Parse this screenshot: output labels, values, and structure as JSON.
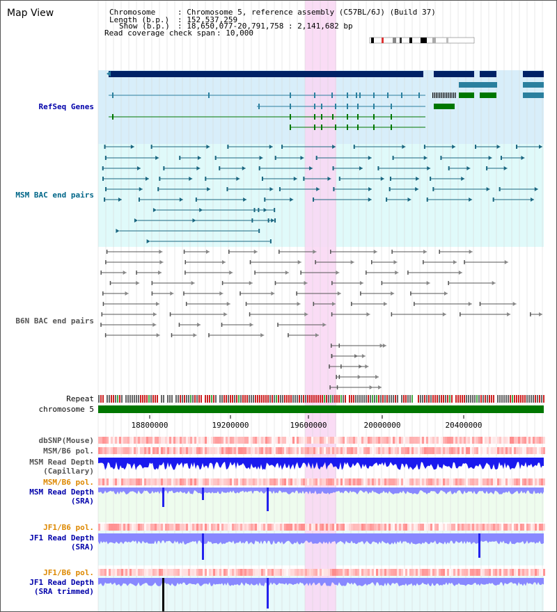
{
  "title": "Map View",
  "info": {
    "chromosome_key": "Chromosome",
    "chromosome_value": ": Chromosome 5, reference assembly (C57BL/6J) (Build 37)",
    "length_key": "Length (b.p.)",
    "length_value": ": 152,537,259",
    "show_key": "Show (b.p.)",
    "show_value": ": 18,650,077-20,791,758 : 2,141,682 bp",
    "coverage_key": "Read coverage check span",
    "coverage_value": ": 10,000"
  },
  "tracks": {
    "refseq": "RefSeq Genes",
    "msm_bac": "MSM BAC end pairs",
    "b6n_bac": "B6N BAC end pairs",
    "repeat": "Repeat",
    "chromosome": "chromosome 5",
    "dbsnp": "dbSNP(Mouse)",
    "msm_b6_pol": "MSM/B6 pol.",
    "msm_read_depth_cap": "MSM Read Depth\n(Capillary)",
    "msm_b6_pol_sra": "MSM/B6 pol.",
    "msm_read_depth_sra": "MSM Read Depth\n(SRA)",
    "jf1_b6_pol": "JF1/B6 pol.",
    "jf1_read_depth_sra": "JF1 Read Depth\n(SRA)",
    "jf1_b6_pol_trim": "JF1/B6 pol.",
    "jf1_read_depth_trim": "JF1 Read Depth\n(SRA trimmed)"
  },
  "axis": {
    "ticks": [
      "18800000",
      "19200000",
      "19600000",
      "20000000",
      "20400000"
    ]
  },
  "colors": {
    "refseq_bg": "#d8eefa",
    "msm_bg": "#e0fafa",
    "highlight": "#f9d6f3",
    "chromosome_bar": "#007700",
    "gene_dark": "#002266",
    "gene_teal": "#2a7f9e",
    "gene_green": "#007700",
    "msm_pair": "#1a6680",
    "b6n_pair": "#555555",
    "depth_capillary": "#1a1aee",
    "depth_sra": "#8888ff",
    "pol_red": "#ff5555"
  }
}
